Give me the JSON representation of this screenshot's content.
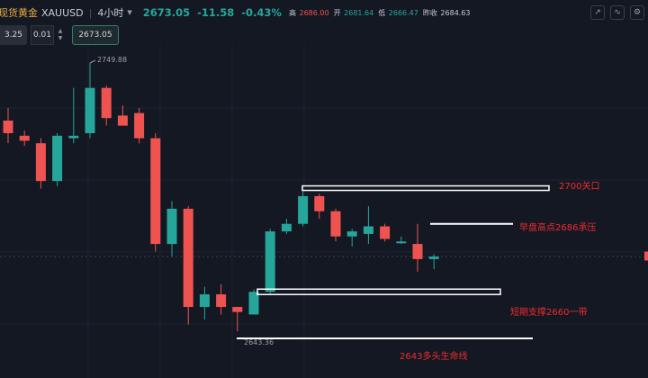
{
  "header": {
    "symbol_name": "现货黄金",
    "symbol_code": "XAUUSD",
    "interval": "4小时",
    "last_price": "2673.05",
    "change": "-11.58",
    "change_pct": "-0.43%",
    "high_label": "高",
    "high_value": "2686.00",
    "open_label": "开",
    "open_value": "2681.64",
    "low_label": "低",
    "low_value": "2666.47",
    "prev_close_label": "昨收",
    "prev_close_value": "2684.63"
  },
  "order_panel": {
    "sell_price": "3.25",
    "quantity": "0.01",
    "buy_price": "2673.05"
  },
  "annotations": {
    "label_2700": "2700关口",
    "label_2686": "早盘高点2686承压",
    "label_2660": "短期支撑2660一带",
    "label_2643": "2643多头生命线"
  },
  "chart_data": {
    "type": "candlestick",
    "high_marker": "2749.88",
    "low_marker": "2643.36",
    "up_color": "#26a69a",
    "down_color": "#ef5350",
    "candles": [
      {
        "o": 2727,
        "h": 2732,
        "l": 2718,
        "c": 2722
      },
      {
        "o": 2721,
        "h": 2723,
        "l": 2717,
        "c": 2719
      },
      {
        "o": 2718,
        "h": 2720,
        "l": 2700,
        "c": 2703
      },
      {
        "o": 2703,
        "h": 2722,
        "l": 2701,
        "c": 2721
      },
      {
        "o": 2720,
        "h": 2740,
        "l": 2718,
        "c": 2721
      },
      {
        "o": 2722,
        "h": 2749.88,
        "l": 2720,
        "c": 2740
      },
      {
        "o": 2740,
        "h": 2741,
        "l": 2725,
        "c": 2728
      },
      {
        "o": 2729,
        "h": 2733,
        "l": 2725,
        "c": 2725
      },
      {
        "o": 2730,
        "h": 2732,
        "l": 2718,
        "c": 2720
      },
      {
        "o": 2720,
        "h": 2722,
        "l": 2675,
        "c": 2678
      },
      {
        "o": 2678,
        "h": 2695,
        "l": 2673,
        "c": 2692
      },
      {
        "o": 2692,
        "h": 2693,
        "l": 2646,
        "c": 2653
      },
      {
        "o": 2653,
        "h": 2661,
        "l": 2648,
        "c": 2658
      },
      {
        "o": 2658,
        "h": 2662,
        "l": 2650,
        "c": 2653
      },
      {
        "o": 2653,
        "h": 2653,
        "l": 2643.36,
        "c": 2651
      },
      {
        "o": 2650,
        "h": 2660,
        "l": 2650,
        "c": 2659
      },
      {
        "o": 2659,
        "h": 2684,
        "l": 2658,
        "c": 2683
      },
      {
        "o": 2683,
        "h": 2688,
        "l": 2682,
        "c": 2686
      },
      {
        "o": 2686,
        "h": 2699,
        "l": 2685,
        "c": 2697
      },
      {
        "o": 2697,
        "h": 2698,
        "l": 2688,
        "c": 2691
      },
      {
        "o": 2691,
        "h": 2692,
        "l": 2679,
        "c": 2681
      },
      {
        "o": 2681,
        "h": 2684,
        "l": 2677,
        "c": 2683
      },
      {
        "o": 2682,
        "h": 2693,
        "l": 2678,
        "c": 2685
      },
      {
        "o": 2685,
        "h": 2686,
        "l": 2679,
        "c": 2680
      },
      {
        "o": 2679,
        "h": 2681,
        "l": 2678,
        "c": 2679
      },
      {
        "o": 2678,
        "h": 2686,
        "l": 2667,
        "c": 2672
      },
      {
        "o": 2672,
        "h": 2674,
        "l": 2668,
        "c": 2673
      }
    ],
    "levels": [
      {
        "name": "2700关口",
        "price": 2700,
        "style": "box"
      },
      {
        "name": "早盘高点2686承压",
        "price": 2686,
        "style": "line"
      },
      {
        "name": "短期支撑2660一带",
        "price": 2659,
        "style": "box"
      },
      {
        "name": "2643多头生命线",
        "price": 2643.36,
        "style": "line"
      }
    ]
  }
}
